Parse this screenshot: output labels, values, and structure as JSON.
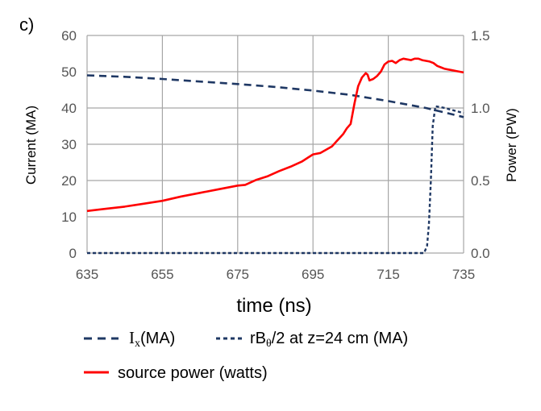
{
  "panel_label": "c)",
  "chart_data": {
    "type": "line",
    "xlabel": "time (ns)",
    "ylabel": "Current (MA)",
    "y2label": "Power (PW)",
    "xlim": [
      635,
      735
    ],
    "ylim": [
      0,
      60
    ],
    "y2lim": [
      0,
      1.5
    ],
    "x_ticks": [
      635,
      655,
      675,
      695,
      715,
      735
    ],
    "y_ticks": [
      0,
      10,
      20,
      30,
      40,
      50,
      60
    ],
    "y2_ticks": [
      "0.0",
      "0.5",
      "1.0",
      "1.5"
    ],
    "grid": true,
    "legend_position": "bottom",
    "colors": {
      "Ix": "#1f3864",
      "rB": "#1f3864",
      "power": "#ff0000",
      "grid": "#a6a6a6"
    },
    "series": [
      {
        "name": "I",
        "name_subscript": "x",
        "name_suffix": "(MA)",
        "axis": "left",
        "style": "dashed",
        "x": [
          635,
          645,
          655,
          665,
          675,
          685,
          695,
          705,
          715,
          725,
          735
        ],
        "y": [
          49.0,
          48.6,
          48.0,
          47.3,
          46.6,
          45.8,
          44.8,
          43.6,
          41.9,
          40.0,
          37.5
        ]
      },
      {
        "name": "rB",
        "name_subscript": "θ",
        "name_suffix": "/2  at  z=24 cm (MA)",
        "axis": "left",
        "style": "short-dashed",
        "x": [
          635,
          700,
          724.5,
          725.3,
          725.8,
          726.3,
          726.8,
          727.5,
          730,
          735
        ],
        "y": [
          0,
          0,
          0,
          2,
          8,
          20,
          35,
          40.5,
          40,
          38.6
        ]
      },
      {
        "name": "source power (watts)",
        "axis": "right",
        "style": "solid",
        "x": [
          635,
          640,
          645,
          650,
          655,
          660,
          665,
          670,
          675,
          677,
          680,
          683,
          686,
          689,
          692,
          695,
          697,
          700,
          703,
          704,
          705,
          706,
          707,
          708,
          709,
          709.5,
          710,
          711,
          712,
          713,
          714,
          715,
          716,
          717,
          718,
          719,
          720,
          721,
          722,
          723,
          724,
          725,
          726,
          727,
          728,
          729,
          730,
          731,
          732,
          733,
          734,
          735
        ],
        "y": [
          0.29,
          0.305,
          0.32,
          0.34,
          0.36,
          0.39,
          0.415,
          0.44,
          0.465,
          0.47,
          0.505,
          0.53,
          0.565,
          0.595,
          0.63,
          0.68,
          0.69,
          0.735,
          0.82,
          0.86,
          0.89,
          1.03,
          1.15,
          1.21,
          1.24,
          1.23,
          1.19,
          1.2,
          1.22,
          1.25,
          1.3,
          1.32,
          1.325,
          1.31,
          1.33,
          1.34,
          1.335,
          1.33,
          1.34,
          1.34,
          1.33,
          1.325,
          1.32,
          1.31,
          1.29,
          1.28,
          1.27,
          1.265,
          1.26,
          1.255,
          1.25,
          1.245
        ]
      }
    ]
  }
}
